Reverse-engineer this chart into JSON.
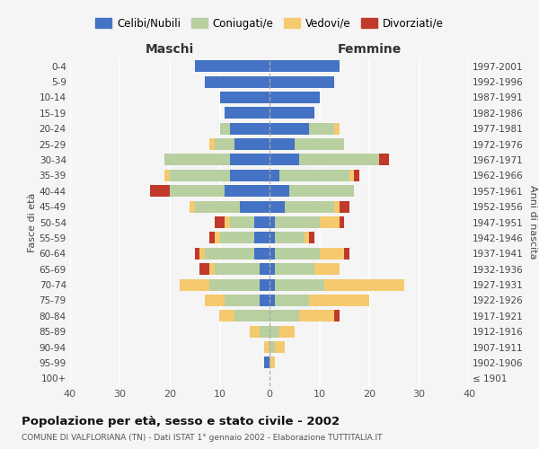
{
  "age_groups": [
    "100+",
    "95-99",
    "90-94",
    "85-89",
    "80-84",
    "75-79",
    "70-74",
    "65-69",
    "60-64",
    "55-59",
    "50-54",
    "45-49",
    "40-44",
    "35-39",
    "30-34",
    "25-29",
    "20-24",
    "15-19",
    "10-14",
    "5-9",
    "0-4"
  ],
  "birth_years": [
    "≤ 1901",
    "1902-1906",
    "1907-1911",
    "1912-1916",
    "1917-1921",
    "1922-1926",
    "1927-1931",
    "1932-1936",
    "1937-1941",
    "1942-1946",
    "1947-1951",
    "1952-1956",
    "1957-1961",
    "1962-1966",
    "1967-1971",
    "1972-1976",
    "1977-1981",
    "1982-1986",
    "1987-1991",
    "1992-1996",
    "1997-2001"
  ],
  "male": {
    "celibi": [
      0,
      1,
      0,
      0,
      0,
      2,
      2,
      2,
      3,
      3,
      3,
      6,
      9,
      8,
      8,
      7,
      8,
      9,
      10,
      13,
      15
    ],
    "coniugati": [
      0,
      0,
      0,
      2,
      7,
      7,
      10,
      9,
      10,
      7,
      5,
      9,
      11,
      12,
      13,
      4,
      2,
      0,
      0,
      0,
      0
    ],
    "vedovi": [
      0,
      0,
      1,
      2,
      3,
      4,
      6,
      1,
      1,
      1,
      1,
      1,
      0,
      1,
      0,
      1,
      0,
      0,
      0,
      0,
      0
    ],
    "divorziati": [
      0,
      0,
      0,
      0,
      0,
      0,
      0,
      2,
      1,
      1,
      2,
      0,
      4,
      0,
      0,
      0,
      0,
      0,
      0,
      0,
      0
    ]
  },
  "female": {
    "nubili": [
      0,
      0,
      0,
      0,
      0,
      1,
      1,
      1,
      1,
      1,
      1,
      3,
      4,
      2,
      6,
      5,
      8,
      9,
      10,
      13,
      14
    ],
    "coniugate": [
      0,
      0,
      1,
      2,
      6,
      7,
      10,
      8,
      9,
      6,
      9,
      10,
      13,
      14,
      16,
      10,
      5,
      0,
      0,
      0,
      0
    ],
    "vedove": [
      0,
      1,
      2,
      3,
      7,
      12,
      16,
      5,
      5,
      1,
      4,
      1,
      0,
      1,
      0,
      0,
      1,
      0,
      0,
      0,
      0
    ],
    "divorziate": [
      0,
      0,
      0,
      0,
      1,
      0,
      0,
      0,
      1,
      1,
      1,
      2,
      0,
      1,
      2,
      0,
      0,
      0,
      0,
      0,
      0
    ]
  },
  "colors": {
    "celibi": "#4472c4",
    "coniugati": "#b8cfa0",
    "vedovi": "#f5c96e",
    "divorziati": "#c0392b"
  },
  "title": "Popolazione per età, sesso e stato civile - 2002",
  "subtitle": "COMUNE DI VALFLORIANA (TN) - Dati ISTAT 1° gennaio 2002 - Elaborazione TUTTITALIA.IT",
  "xlabel_left": "Maschi",
  "xlabel_right": "Femmine",
  "ylabel_left": "Fasce di età",
  "ylabel_right": "Anni di nascita",
  "xlim": 40,
  "legend_labels": [
    "Celibi/Nubili",
    "Coniugati/e",
    "Vedovi/e",
    "Divorziati/e"
  ],
  "background_color": "#f5f5f5"
}
